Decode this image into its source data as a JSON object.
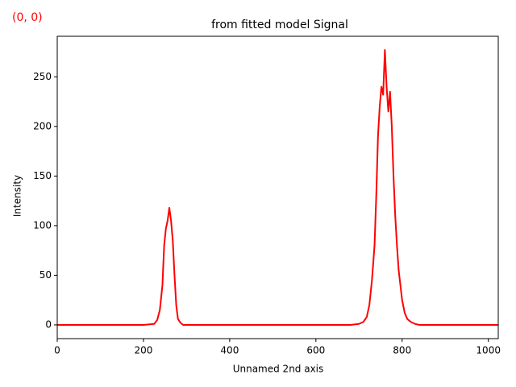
{
  "chart_data": {
    "type": "line",
    "title": "from fitted model Signal",
    "annotation": "(0, 0)",
    "xlabel": "Unnamed 2nd axis",
    "ylabel": "Intensity",
    "x": [
      0,
      200,
      225,
      232,
      238,
      244,
      248,
      252,
      256,
      260,
      264,
      268,
      272,
      276,
      280,
      286,
      292,
      300,
      680,
      700,
      710,
      718,
      724,
      730,
      736,
      740,
      744,
      748,
      752,
      756,
      760,
      764,
      768,
      772,
      776,
      780,
      784,
      788,
      792,
      796,
      800,
      806,
      812,
      820,
      830,
      840,
      1023
    ],
    "values": [
      0,
      0,
      1,
      5,
      15,
      40,
      80,
      97,
      105,
      118,
      105,
      85,
      50,
      20,
      6,
      2,
      0,
      0,
      0,
      1,
      3,
      8,
      20,
      45,
      80,
      130,
      190,
      220,
      240,
      232,
      277,
      240,
      215,
      235,
      200,
      150,
      110,
      80,
      55,
      40,
      25,
      12,
      6,
      3,
      1,
      0,
      0
    ],
    "color": "#ff0000",
    "xlim": [
      0,
      1023
    ],
    "ylim": [
      -13.85,
      290.85
    ],
    "xticks": [
      0,
      200,
      400,
      600,
      800,
      1000
    ],
    "yticks": [
      0,
      50,
      100,
      150,
      200,
      250
    ]
  }
}
